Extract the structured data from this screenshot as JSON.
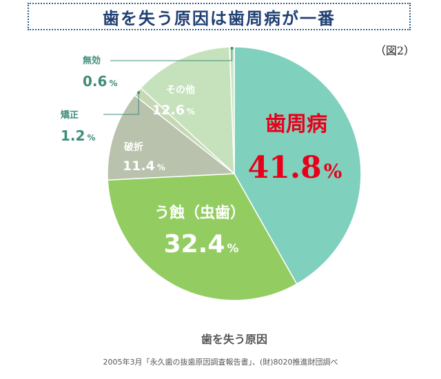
{
  "title": "歯を失う原因は歯周病が一番",
  "figure_label": "（図2）",
  "caption": "歯を失う原因",
  "source": "2005年3月「永久歯の抜歯原因調査報告書」、(財)8020推進財団調べ",
  "chart_data": {
    "type": "pie",
    "title": "歯を失う原因",
    "unit": "%",
    "slices": [
      {
        "label": "歯周病",
        "value": 41.8,
        "value_text": "41.8",
        "color": "#7fd0bd"
      },
      {
        "label": "う蝕（虫歯）",
        "value": 32.4,
        "value_text": "32.4",
        "color": "#93cd62"
      },
      {
        "label": "破折",
        "value": 11.4,
        "value_text": "11.4",
        "color": "#b9c2ac"
      },
      {
        "label": "矯正",
        "value": 1.2,
        "value_text": "1.2",
        "color": "#c6d7b4"
      },
      {
        "label": "その他",
        "value": 12.6,
        "value_text": "12.6",
        "color": "#c6e2bd"
      },
      {
        "label": "無効",
        "value": 0.6,
        "value_text": "0.6",
        "color": "#cfe6c6"
      }
    ],
    "highlight_color": "#e8001a",
    "external_label_color": "#3e8d79"
  }
}
